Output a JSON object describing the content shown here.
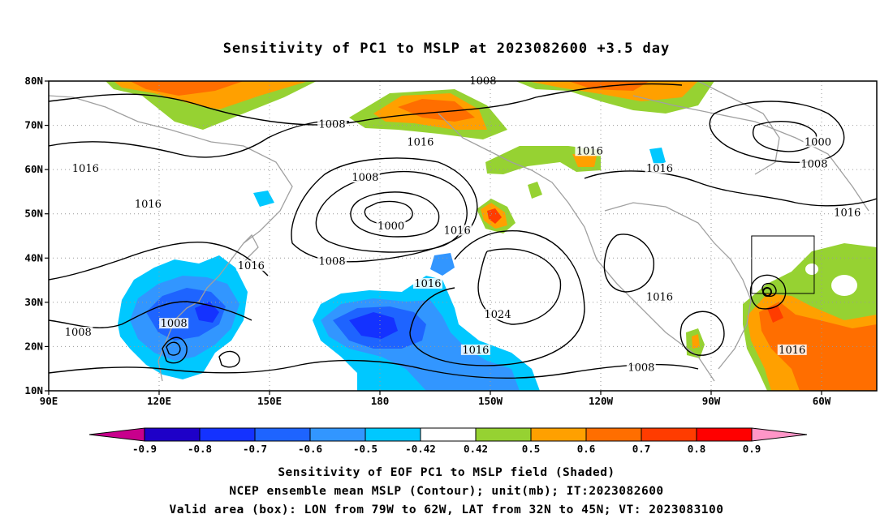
{
  "title": "Sensitivity of PC1 to MSLP at 2023082600 +3.5 day",
  "captions": [
    "Sensitivity of EOF PC1 to MSLP field (Shaded)",
    "NCEP ensemble mean MSLP (Contour); unit(mb); IT:2023082600",
    "Valid area (box): LON from 79W to 62W, LAT from 32N to 45N; VT: 2023083100"
  ],
  "axes": {
    "lon_labels": [
      "90E",
      "120E",
      "150E",
      "180",
      "150W",
      "120W",
      "90W",
      "60W"
    ],
    "lat_labels": [
      "10N",
      "20N",
      "30N",
      "40N",
      "50N",
      "60N",
      "70N",
      "80N"
    ]
  },
  "colorbar": {
    "labels": [
      "-0.9",
      "-0.8",
      "-0.7",
      "-0.6",
      "-0.5",
      "-0.42",
      "0.42",
      "0.5",
      "0.6",
      "0.7",
      "0.8",
      "0.9"
    ],
    "colors": [
      "#c8008c",
      "#1e00c8",
      "#1432ff",
      "#1e64ff",
      "#3296ff",
      "#00c8ff",
      "#ffffff",
      "#96d232",
      "#ffa000",
      "#ff6e00",
      "#ff3c00",
      "#ff0000",
      "#ff96c8"
    ]
  },
  "contour_labels": [
    {
      "text": "1008",
      "lon": 208,
      "lat": 79.8
    },
    {
      "text": "1008",
      "lon": 167,
      "lat": 70
    },
    {
      "text": "1016",
      "lon": 191,
      "lat": 66
    },
    {
      "text": "1016",
      "lon": 237,
      "lat": 64
    },
    {
      "text": "1000",
      "lon": 299,
      "lat": 66
    },
    {
      "text": "1008",
      "lon": 298,
      "lat": 61
    },
    {
      "text": "1016",
      "lon": 100,
      "lat": 60
    },
    {
      "text": "1008",
      "lon": 176,
      "lat": 58
    },
    {
      "text": "1016",
      "lon": 256,
      "lat": 60
    },
    {
      "text": "1016",
      "lon": 117,
      "lat": 52
    },
    {
      "text": "1000",
      "lon": 183,
      "lat": 47
    },
    {
      "text": "1016",
      "lon": 201,
      "lat": 46
    },
    {
      "text": "1016",
      "lon": 307,
      "lat": 50
    },
    {
      "text": "1008",
      "lon": 167,
      "lat": 39
    },
    {
      "text": "1016",
      "lon": 145,
      "lat": 38
    },
    {
      "text": "1016",
      "lon": 193,
      "lat": 34
    },
    {
      "text": "1024",
      "lon": 212,
      "lat": 27
    },
    {
      "text": "1016",
      "lon": 256,
      "lat": 31
    },
    {
      "text": "1008",
      "lon": 124,
      "lat": 25
    },
    {
      "text": "1008",
      "lon": 98,
      "lat": 23
    },
    {
      "text": "1016",
      "lon": 206,
      "lat": 19
    },
    {
      "text": "1008",
      "lon": 251,
      "lat": 15
    },
    {
      "text": "1016",
      "lon": 292,
      "lat": 19
    }
  ],
  "valid_box": {
    "lon_min": 281,
    "lon_max": 298,
    "lat_min": 32,
    "lat_max": 45
  },
  "map_extent": {
    "lon_min": 90,
    "lon_max": 315,
    "lat_min": 10,
    "lat_max": 80
  }
}
